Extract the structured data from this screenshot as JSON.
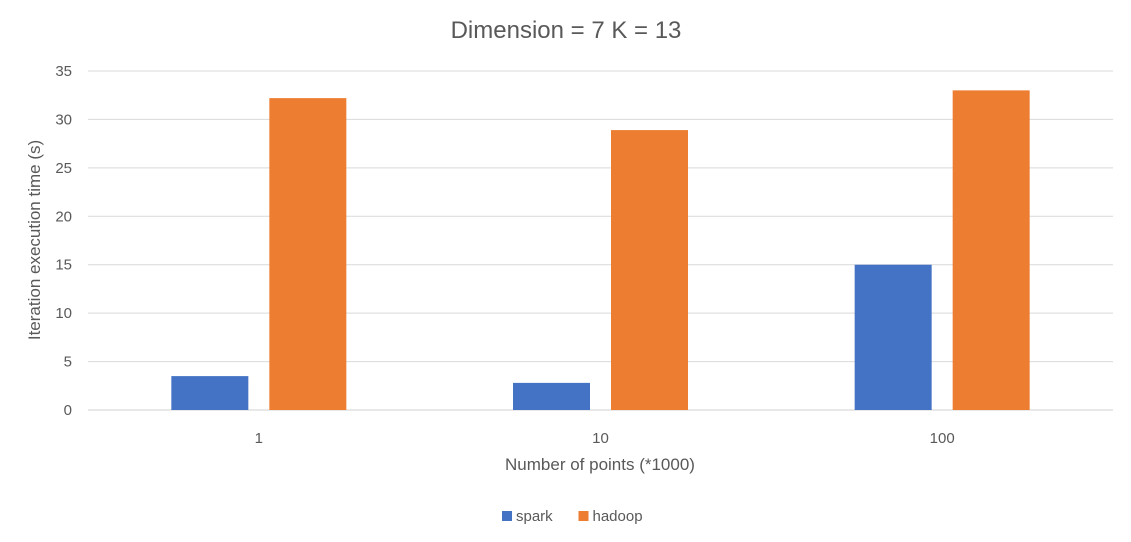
{
  "chart_data": {
    "type": "bar",
    "title": "Dimension = 7 K = 13",
    "xlabel": "Number of points (*1000)",
    "ylabel": "Iteration execution time (s)",
    "categories": [
      "1",
      "10",
      "100"
    ],
    "series": [
      {
        "name": "spark",
        "values": [
          3.5,
          2.8,
          15.0
        ],
        "color": "#4472c4"
      },
      {
        "name": "hadoop",
        "values": [
          32.2,
          28.9,
          33.0
        ],
        "color": "#ed7d31"
      }
    ],
    "ylim": [
      0,
      35
    ],
    "yticks": [
      "0",
      "5",
      "10",
      "15",
      "20",
      "25",
      "30",
      "35"
    ],
    "grid": true,
    "legend_position": "bottom"
  }
}
